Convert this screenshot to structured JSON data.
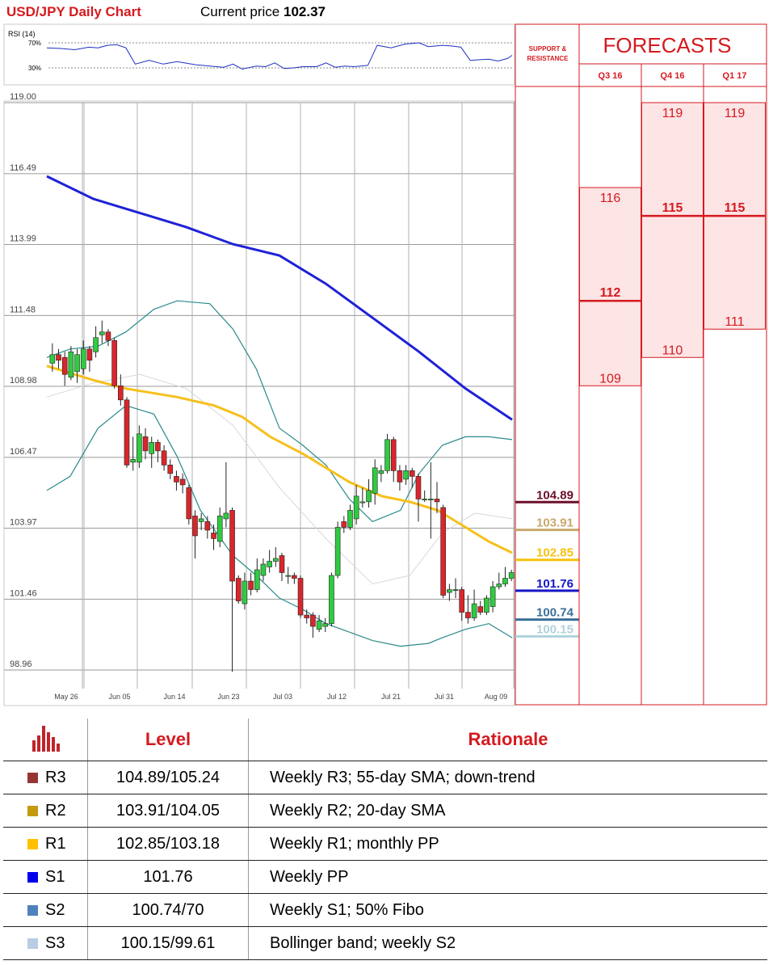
{
  "title": "USD/JPY Daily Chart",
  "current_price_label": "Current price",
  "current_price": "102.37",
  "rsi": {
    "label": "RSI (14)",
    "level_high": "70%",
    "level_low": "30%"
  },
  "chart_data": {
    "type": "candlestick",
    "y_ticks": [
      "119.00",
      "116.49",
      "113.99",
      "111.48",
      "108.98",
      "106.47",
      "103.97",
      "101.46",
      "98.96"
    ],
    "x_ticks": [
      "May 26",
      "Jun 05",
      "Jun 14",
      "Jun 23",
      "Jul 03",
      "Jul 12",
      "Jul 21",
      "Jul 31",
      "Aug 09"
    ],
    "ylim": [
      98.96,
      119.0
    ],
    "candles": [
      {
        "o": 109.8,
        "c": 110.1,
        "h": 110.5,
        "l": 109.5
      },
      {
        "o": 110.1,
        "c": 109.9,
        "h": 110.3,
        "l": 109.6
      },
      {
        "o": 110.0,
        "c": 109.4,
        "h": 110.2,
        "l": 109.0
      },
      {
        "o": 109.3,
        "c": 110.2,
        "h": 110.4,
        "l": 109.2
      },
      {
        "o": 109.5,
        "c": 110.1,
        "h": 110.3,
        "l": 109.1
      },
      {
        "o": 109.6,
        "c": 110.3,
        "h": 110.6,
        "l": 109.4
      },
      {
        "o": 110.3,
        "c": 109.9,
        "h": 110.4,
        "l": 109.5
      },
      {
        "o": 110.2,
        "c": 110.7,
        "h": 111.1,
        "l": 110.0
      },
      {
        "o": 110.8,
        "c": 110.9,
        "h": 111.3,
        "l": 110.5
      },
      {
        "o": 110.9,
        "c": 110.6,
        "h": 111.0,
        "l": 110.4
      },
      {
        "o": 110.6,
        "c": 109.0,
        "h": 110.7,
        "l": 108.9
      },
      {
        "o": 109.0,
        "c": 108.5,
        "h": 109.4,
        "l": 108.3
      },
      {
        "o": 108.5,
        "c": 106.2,
        "h": 108.6,
        "l": 106.1
      },
      {
        "o": 106.3,
        "c": 106.4,
        "h": 107.2,
        "l": 106.0
      },
      {
        "o": 106.3,
        "c": 107.3,
        "h": 107.6,
        "l": 106.1
      },
      {
        "o": 107.2,
        "c": 106.7,
        "h": 107.5,
        "l": 106.4
      },
      {
        "o": 106.6,
        "c": 107.0,
        "h": 107.2,
        "l": 106.1
      },
      {
        "o": 107.0,
        "c": 106.7,
        "h": 107.1,
        "l": 106.3
      },
      {
        "o": 106.7,
        "c": 106.2,
        "h": 106.9,
        "l": 106.0
      },
      {
        "o": 106.2,
        "c": 105.9,
        "h": 106.4,
        "l": 105.7
      },
      {
        "o": 105.8,
        "c": 105.6,
        "h": 106.0,
        "l": 105.3
      },
      {
        "o": 105.7,
        "c": 105.5,
        "h": 105.9,
        "l": 105.2
      },
      {
        "o": 105.4,
        "c": 104.3,
        "h": 105.5,
        "l": 104.1
      },
      {
        "o": 104.4,
        "c": 103.7,
        "h": 104.6,
        "l": 102.9
      },
      {
        "o": 104.2,
        "c": 104.3,
        "h": 104.5,
        "l": 103.9
      },
      {
        "o": 104.2,
        "c": 103.9,
        "h": 104.4,
        "l": 103.6
      },
      {
        "o": 103.8,
        "c": 103.6,
        "h": 104.1,
        "l": 103.2
      },
      {
        "o": 103.5,
        "c": 104.4,
        "h": 104.7,
        "l": 103.3
      },
      {
        "o": 104.3,
        "c": 104.5,
        "h": 106.3,
        "l": 104.0
      },
      {
        "o": 104.6,
        "c": 102.1,
        "h": 104.7,
        "l": 98.9
      },
      {
        "o": 102.2,
        "c": 101.4,
        "h": 102.3,
        "l": 101.3
      },
      {
        "o": 101.3,
        "c": 102.1,
        "h": 102.4,
        "l": 101.1
      },
      {
        "o": 102.1,
        "c": 101.8,
        "h": 102.4,
        "l": 101.6
      },
      {
        "o": 101.8,
        "c": 102.5,
        "h": 102.9,
        "l": 101.7
      },
      {
        "o": 102.3,
        "c": 102.7,
        "h": 102.9,
        "l": 102.1
      },
      {
        "o": 102.6,
        "c": 102.8,
        "h": 103.2,
        "l": 102.4
      },
      {
        "o": 102.8,
        "c": 102.9,
        "h": 103.3,
        "l": 102.6
      },
      {
        "o": 103.0,
        "c": 102.4,
        "h": 103.1,
        "l": 102.1
      },
      {
        "o": 102.3,
        "c": 102.3,
        "h": 102.6,
        "l": 102.0
      },
      {
        "o": 102.3,
        "c": 102.2,
        "h": 102.4,
        "l": 102.0
      },
      {
        "o": 102.2,
        "c": 100.9,
        "h": 102.3,
        "l": 100.8
      },
      {
        "o": 100.9,
        "c": 100.8,
        "h": 101.1,
        "l": 100.6
      },
      {
        "o": 100.9,
        "c": 100.5,
        "h": 101.0,
        "l": 100.1
      },
      {
        "o": 100.4,
        "c": 100.7,
        "h": 100.9,
        "l": 100.3
      },
      {
        "o": 100.5,
        "c": 100.6,
        "h": 100.8,
        "l": 100.3
      },
      {
        "o": 100.6,
        "c": 102.3,
        "h": 102.4,
        "l": 100.5
      },
      {
        "o": 102.3,
        "c": 104.0,
        "h": 104.2,
        "l": 102.2
      },
      {
        "o": 104.2,
        "c": 104.0,
        "h": 104.4,
        "l": 103.8
      },
      {
        "o": 104.0,
        "c": 104.6,
        "h": 104.8,
        "l": 103.9
      },
      {
        "o": 104.3,
        "c": 105.1,
        "h": 105.5,
        "l": 104.1
      },
      {
        "o": 104.9,
        "c": 104.9,
        "h": 105.4,
        "l": 104.7
      },
      {
        "o": 104.9,
        "c": 105.3,
        "h": 105.7,
        "l": 104.7
      },
      {
        "o": 105.2,
        "c": 106.1,
        "h": 106.4,
        "l": 104.8
      },
      {
        "o": 105.9,
        "c": 106.0,
        "h": 106.2,
        "l": 105.6
      },
      {
        "o": 106.0,
        "c": 107.1,
        "h": 107.3,
        "l": 105.9
      },
      {
        "o": 107.1,
        "c": 106.0,
        "h": 107.2,
        "l": 105.6
      },
      {
        "o": 106.0,
        "c": 105.6,
        "h": 106.2,
        "l": 105.3
      },
      {
        "o": 105.7,
        "c": 106.0,
        "h": 106.2,
        "l": 105.5
      },
      {
        "o": 106.0,
        "c": 105.8,
        "h": 106.1,
        "l": 105.4
      },
      {
        "o": 105.8,
        "c": 105.0,
        "h": 105.9,
        "l": 104.2
      },
      {
        "o": 105.0,
        "c": 105.0,
        "h": 105.3,
        "l": 104.9
      },
      {
        "o": 105.0,
        "c": 105.0,
        "h": 106.3,
        "l": 103.6
      },
      {
        "o": 105.0,
        "c": 104.9,
        "h": 105.6,
        "l": 104.5
      },
      {
        "o": 104.7,
        "c": 101.6,
        "h": 104.8,
        "l": 101.5
      },
      {
        "o": 101.7,
        "c": 101.8,
        "h": 102.0,
        "l": 101.4
      },
      {
        "o": 101.8,
        "c": 101.8,
        "h": 102.2,
        "l": 101.5
      },
      {
        "o": 101.8,
        "c": 101.0,
        "h": 101.9,
        "l": 100.7
      },
      {
        "o": 101.0,
        "c": 100.8,
        "h": 101.6,
        "l": 100.6
      },
      {
        "o": 100.8,
        "c": 101.3,
        "h": 101.8,
        "l": 100.7
      },
      {
        "o": 101.2,
        "c": 101.0,
        "h": 101.4,
        "l": 100.9
      },
      {
        "o": 101.0,
        "c": 101.5,
        "h": 101.6,
        "l": 100.9
      },
      {
        "o": 101.2,
        "c": 101.9,
        "h": 102.1,
        "l": 101.0
      },
      {
        "o": 101.9,
        "c": 102.0,
        "h": 102.4,
        "l": 101.8
      },
      {
        "o": 102.0,
        "c": 102.2,
        "h": 102.6,
        "l": 101.9
      },
      {
        "o": 102.2,
        "c": 102.4,
        "h": 102.5,
        "l": 102.1
      }
    ],
    "sma55": [
      [
        0,
        116.4
      ],
      [
        0.1,
        115.6
      ],
      [
        0.2,
        115.1
      ],
      [
        0.3,
        114.6
      ],
      [
        0.4,
        114.0
      ],
      [
        0.5,
        113.6
      ],
      [
        0.6,
        112.6
      ],
      [
        0.7,
        111.4
      ],
      [
        0.8,
        110.2
      ],
      [
        0.9,
        108.9
      ],
      [
        1.0,
        107.8
      ]
    ],
    "sma20": [
      [
        0,
        109.7
      ],
      [
        0.1,
        109.2
      ],
      [
        0.17,
        108.9
      ],
      [
        0.28,
        108.6
      ],
      [
        0.36,
        108.3
      ],
      [
        0.42,
        107.9
      ],
      [
        0.48,
        107.2
      ],
      [
        0.55,
        106.6
      ],
      [
        0.65,
        105.6
      ],
      [
        0.72,
        105.1
      ],
      [
        0.78,
        104.9
      ],
      [
        0.84,
        104.6
      ],
      [
        0.9,
        104.0
      ],
      [
        0.95,
        103.5
      ],
      [
        1.0,
        103.1
      ]
    ],
    "bb_upper": [
      [
        0,
        110.0
      ],
      [
        0.05,
        110.3
      ],
      [
        0.11,
        110.4
      ],
      [
        0.17,
        110.9
      ],
      [
        0.23,
        111.7
      ],
      [
        0.28,
        112.0
      ],
      [
        0.35,
        111.9
      ],
      [
        0.4,
        111.0
      ],
      [
        0.45,
        109.6
      ],
      [
        0.5,
        107.5
      ],
      [
        0.55,
        106.9
      ],
      [
        0.6,
        106.2
      ],
      [
        0.65,
        105.0
      ],
      [
        0.7,
        104.2
      ],
      [
        0.76,
        104.6
      ],
      [
        0.8,
        105.9
      ],
      [
        0.85,
        106.9
      ],
      [
        0.9,
        107.2
      ],
      [
        0.95,
        107.2
      ],
      [
        1.0,
        107.1
      ]
    ],
    "bb_lower": [
      [
        0,
        105.3
      ],
      [
        0.05,
        105.8
      ],
      [
        0.11,
        107.5
      ],
      [
        0.17,
        108.3
      ],
      [
        0.23,
        108.0
      ],
      [
        0.28,
        106.5
      ],
      [
        0.33,
        104.6
      ],
      [
        0.4,
        103.0
      ],
      [
        0.45,
        102.3
      ],
      [
        0.5,
        101.5
      ],
      [
        0.55,
        101.1
      ],
      [
        0.6,
        100.6
      ],
      [
        0.65,
        100.3
      ],
      [
        0.7,
        100.0
      ],
      [
        0.76,
        99.8
      ],
      [
        0.82,
        99.9
      ],
      [
        0.85,
        100.1
      ],
      [
        0.9,
        100.4
      ],
      [
        0.95,
        100.6
      ],
      [
        1.0,
        100.1
      ]
    ],
    "sma_mid": [
      [
        0,
        108.6
      ],
      [
        0.1,
        109.1
      ],
      [
        0.2,
        109.4
      ],
      [
        0.3,
        108.9
      ],
      [
        0.4,
        107.6
      ],
      [
        0.5,
        105.4
      ],
      [
        0.6,
        103.6
      ],
      [
        0.7,
        102.0
      ],
      [
        0.78,
        102.3
      ],
      [
        0.85,
        103.8
      ],
      [
        0.92,
        104.5
      ],
      [
        1.0,
        104.3
      ]
    ],
    "rsi": [
      [
        0,
        0.62
      ],
      [
        0.03,
        0.61
      ],
      [
        0.06,
        0.59
      ],
      [
        0.09,
        0.63
      ],
      [
        0.11,
        0.62
      ],
      [
        0.13,
        0.66
      ],
      [
        0.15,
        0.67
      ],
      [
        0.17,
        0.62
      ],
      [
        0.19,
        0.36
      ],
      [
        0.22,
        0.42
      ],
      [
        0.25,
        0.36
      ],
      [
        0.28,
        0.4
      ],
      [
        0.32,
        0.35
      ],
      [
        0.35,
        0.33
      ],
      [
        0.38,
        0.31
      ],
      [
        0.4,
        0.36
      ],
      [
        0.42,
        0.28
      ],
      [
        0.45,
        0.33
      ],
      [
        0.47,
        0.32
      ],
      [
        0.49,
        0.38
      ],
      [
        0.51,
        0.29
      ],
      [
        0.53,
        0.3
      ],
      [
        0.55,
        0.32
      ],
      [
        0.58,
        0.32
      ],
      [
        0.6,
        0.38
      ],
      [
        0.62,
        0.31
      ],
      [
        0.64,
        0.33
      ],
      [
        0.66,
        0.32
      ],
      [
        0.69,
        0.34
      ],
      [
        0.71,
        0.66
      ],
      [
        0.74,
        0.62
      ],
      [
        0.77,
        0.68
      ],
      [
        0.8,
        0.7
      ],
      [
        0.82,
        0.64
      ],
      [
        0.85,
        0.66
      ],
      [
        0.87,
        0.65
      ],
      [
        0.89,
        0.63
      ],
      [
        0.91,
        0.42
      ],
      [
        0.93,
        0.43
      ],
      [
        0.95,
        0.44
      ],
      [
        0.97,
        0.41
      ],
      [
        0.99,
        0.45
      ],
      [
        1.0,
        0.5
      ]
    ]
  },
  "levels": [
    {
      "value": "104.89",
      "color": "#6b0f2a"
    },
    {
      "value": "103.91",
      "color": "#c9a86a"
    },
    {
      "value": "102.85",
      "color": "#f7c10c"
    },
    {
      "value": "101.76",
      "color": "#1515c8"
    },
    {
      "value": "100.74",
      "color": "#3a6f98"
    },
    {
      "value": "100.15",
      "color": "#b0d2dc"
    }
  ],
  "forecasts": {
    "title": "FORECASTS",
    "support_header": "SUPPORT & RESISTANCE",
    "quarters": [
      {
        "label": "Q3 16",
        "high": "116",
        "mid": "112",
        "low": "109"
      },
      {
        "label": "Q4 16",
        "high": "119",
        "mid": "115",
        "low": "110"
      },
      {
        "label": "Q1 17",
        "high": "119",
        "mid": "115",
        "low": "111"
      }
    ]
  },
  "table": {
    "headers": {
      "level": "Level",
      "rationale": "Rationale"
    },
    "rows": [
      {
        "code": "R3",
        "color": "#963634",
        "level": "104.89/105.24",
        "rationale": "Weekly R3; 55-day SMA; down-trend"
      },
      {
        "code": "R2",
        "color": "#c49b0e",
        "level": "103.91/104.05",
        "rationale": "Weekly R2; 20-day SMA"
      },
      {
        "code": "R1",
        "color": "#ffc000",
        "level": "102.85/103.18",
        "rationale": "Weekly R1; monthly PP"
      },
      {
        "code": "S1",
        "color": "#0000ee",
        "level": "101.76",
        "rationale": "Weekly PP"
      },
      {
        "code": "S2",
        "color": "#4f81bd",
        "level": "100.74/70",
        "rationale": "Weekly S1; 50% Fibo"
      },
      {
        "code": "S3",
        "color": "#b8cce4",
        "level": "100.15/99.61",
        "rationale": "Bollinger band; weekly S2"
      }
    ]
  }
}
